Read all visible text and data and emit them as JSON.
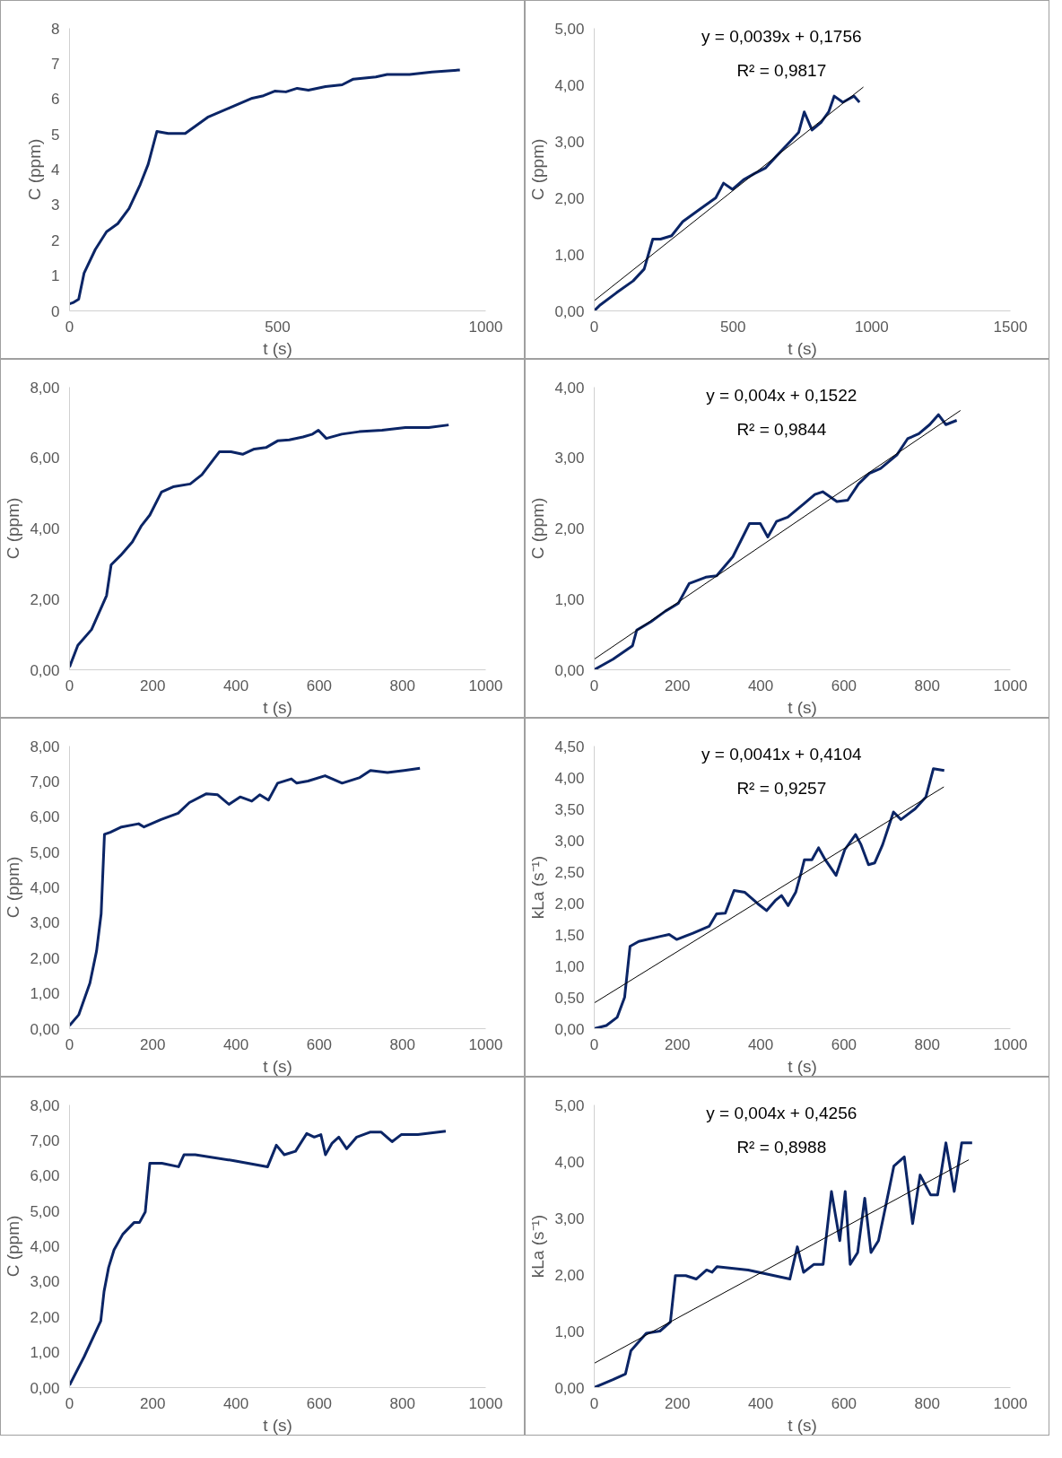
{
  "chart_data": [
    {
      "type": "line",
      "xlabel": "t (s)",
      "ylabel": "C (ppm)",
      "xlim": [
        0,
        1000
      ],
      "ylim": [
        0,
        8
      ],
      "xticks": [
        0,
        500,
        1000
      ],
      "yticks": [
        0,
        1,
        2,
        3,
        4,
        5,
        6,
        7,
        8
      ],
      "series": [
        {
          "color": "#0b2566",
          "x": [
            0,
            8,
            22,
            35,
            62,
            89,
            116,
            143,
            170,
            189,
            210,
            237,
            278,
            332,
            385,
            439,
            466,
            493,
            520,
            547,
            574,
            615,
            655,
            682,
            736,
            763,
            817,
            871,
            938
          ],
          "values": [
            0.2,
            0.23,
            0.33,
            1.07,
            1.74,
            2.24,
            2.47,
            2.9,
            3.58,
            4.15,
            5.08,
            5.02,
            5.02,
            5.48,
            5.75,
            6.02,
            6.09,
            6.22,
            6.2,
            6.3,
            6.25,
            6.35,
            6.4,
            6.56,
            6.62,
            6.69,
            6.69,
            6.76,
            6.82
          ]
        }
      ]
    },
    {
      "type": "line",
      "xlabel": "t (s)",
      "ylabel": "C (ppm)",
      "xlim": [
        0,
        1500
      ],
      "ylim": [
        0,
        5
      ],
      "xticks": [
        0,
        500,
        1000,
        1500
      ],
      "yticks": [
        {
          "value": 0,
          "label": "0,00"
        },
        {
          "value": 1,
          "label": "1,00"
        },
        {
          "value": 2,
          "label": "2,00"
        },
        {
          "value": 3,
          "label": "3,00"
        },
        {
          "value": 4,
          "label": "4,00"
        },
        {
          "value": 5,
          "label": "5,00"
        }
      ],
      "annotations": [
        "y = 0,0039x + 0,1756",
        "R² = 0,9817"
      ],
      "series": [
        {
          "color": "#0b2566",
          "x": [
            0,
            20,
            80,
            140,
            180,
            211,
            239,
            279,
            319,
            378,
            438,
            466,
            498,
            538,
            578,
            618,
            657,
            697,
            737,
            757,
            785,
            817,
            845,
            865,
            896,
            936,
            956
          ],
          "values": [
            0,
            0.1,
            0.32,
            0.53,
            0.74,
            1.27,
            1.27,
            1.33,
            1.58,
            1.79,
            2.0,
            2.26,
            2.15,
            2.32,
            2.43,
            2.53,
            2.74,
            2.95,
            3.16,
            3.52,
            3.2,
            3.33,
            3.52,
            3.8,
            3.69,
            3.8,
            3.69
          ]
        },
        {
          "type": "line",
          "color": "#000000",
          "x": [
            0,
            970
          ],
          "values": [
            0.18,
            3.96
          ]
        }
      ]
    },
    {
      "type": "line",
      "xlabel": "t (s)",
      "ylabel": "C (ppm)",
      "xlim": [
        0,
        1000
      ],
      "ylim": [
        0,
        8
      ],
      "xticks": [
        0,
        200,
        400,
        600,
        800,
        1000
      ],
      "yticks": [
        {
          "value": 0,
          "label": "0,00"
        },
        {
          "value": 2,
          "label": "2,00"
        },
        {
          "value": 4,
          "label": "4,00"
        },
        {
          "value": 6,
          "label": "6,00"
        },
        {
          "value": 8,
          "label": "8,00"
        }
      ],
      "series": [
        {
          "color": "#0b2566",
          "x": [
            0,
            20,
            53,
            89,
            100,
            123,
            151,
            173,
            193,
            221,
            249,
            290,
            318,
            360,
            388,
            416,
            444,
            472,
            500,
            528,
            561,
            584,
            598,
            617,
            654,
            696,
            751,
            807,
            863,
            911
          ],
          "values": [
            0.08,
            0.69,
            1.14,
            2.1,
            2.97,
            3.24,
            3.62,
            4.08,
            4.38,
            5.03,
            5.18,
            5.26,
            5.52,
            6.17,
            6.17,
            6.1,
            6.25,
            6.29,
            6.48,
            6.51,
            6.59,
            6.67,
            6.78,
            6.55,
            6.67,
            6.74,
            6.78,
            6.86,
            6.86,
            6.93
          ]
        }
      ]
    },
    {
      "type": "line",
      "xlabel": "t (s)",
      "ylabel": "C (ppm)",
      "xlim": [
        0,
        1000
      ],
      "ylim": [
        0,
        4
      ],
      "xticks": [
        0,
        200,
        400,
        600,
        800,
        1000
      ],
      "yticks": [
        {
          "value": 0,
          "label": "0,00"
        },
        {
          "value": 1,
          "label": "1,00"
        },
        {
          "value": 2,
          "label": "2,00"
        },
        {
          "value": 3,
          "label": "3,00"
        },
        {
          "value": 4,
          "label": "4,00"
        }
      ],
      "annotations": [
        "y = 0,004x + 0,1522",
        "R² = 0,9844"
      ],
      "series": [
        {
          "color": "#0b2566",
          "x": [
            0,
            18,
            45,
            92,
            102,
            136,
            171,
            202,
            228,
            268,
            294,
            333,
            373,
            399,
            417,
            438,
            465,
            504,
            530,
            549,
            583,
            609,
            635,
            661,
            688,
            727,
            753,
            780,
            806,
            827,
            845,
            871
          ],
          "values": [
            0,
            0.06,
            0.15,
            0.34,
            0.56,
            0.68,
            0.83,
            0.94,
            1.22,
            1.31,
            1.33,
            1.6,
            2.07,
            2.07,
            1.88,
            2.1,
            2.16,
            2.35,
            2.48,
            2.52,
            2.38,
            2.4,
            2.63,
            2.78,
            2.85,
            3.04,
            3.27,
            3.34,
            3.47,
            3.61,
            3.47,
            3.53
          ]
        },
        {
          "type": "line",
          "color": "#000000",
          "x": [
            0,
            880
          ],
          "values": [
            0.15,
            3.67
          ]
        }
      ]
    },
    {
      "type": "line",
      "xlabel": "t (s)",
      "ylabel": "C (ppm)",
      "xlim": [
        0,
        1000
      ],
      "ylim": [
        0,
        8
      ],
      "xticks": [
        0,
        200,
        400,
        600,
        800,
        1000
      ],
      "yticks": [
        {
          "value": 0,
          "label": "0,00"
        },
        {
          "value": 1,
          "label": "1,00"
        },
        {
          "value": 2,
          "label": "2,00"
        },
        {
          "value": 3,
          "label": "3,00"
        },
        {
          "value": 4,
          "label": "4,00"
        },
        {
          "value": 5,
          "label": "5,00"
        },
        {
          "value": 6,
          "label": "6,00"
        },
        {
          "value": 7,
          "label": "7,00"
        },
        {
          "value": 8,
          "label": "8,00"
        }
      ],
      "series": [
        {
          "color": "#0b2566",
          "x": [
            0,
            22,
            49,
            65,
            76,
            84,
            98,
            125,
            166,
            179,
            220,
            261,
            288,
            329,
            356,
            383,
            410,
            438,
            457,
            478,
            500,
            533,
            546,
            573,
            614,
            655,
            696,
            723,
            764,
            804,
            842
          ],
          "values": [
            0.09,
            0.39,
            1.29,
            2.2,
            3.25,
            5.5,
            5.56,
            5.71,
            5.8,
            5.71,
            5.92,
            6.1,
            6.4,
            6.65,
            6.62,
            6.35,
            6.56,
            6.44,
            6.62,
            6.47,
            6.95,
            7.07,
            6.95,
            7.01,
            7.16,
            6.95,
            7.1,
            7.31,
            7.25,
            7.31,
            7.37
          ]
        }
      ]
    },
    {
      "type": "line",
      "xlabel": "t (s)",
      "ylabel": "kLa (s⁻¹)",
      "xlim": [
        0,
        1000
      ],
      "ylim": [
        0,
        4.5
      ],
      "xticks": [
        0,
        200,
        400,
        600,
        800,
        1000
      ],
      "yticks": [
        {
          "value": 0,
          "label": "0,00"
        },
        {
          "value": 0.5,
          "label": "0,50"
        },
        {
          "value": 1,
          "label": "1,00"
        },
        {
          "value": 1.5,
          "label": "1,50"
        },
        {
          "value": 2,
          "label": "2,00"
        },
        {
          "value": 2.5,
          "label": "2,50"
        },
        {
          "value": 3,
          "label": "3,00"
        },
        {
          "value": 3.5,
          "label": "3,50"
        },
        {
          "value": 4,
          "label": "4,00"
        },
        {
          "value": 4.5,
          "label": "4,50"
        }
      ],
      "annotations": [
        "y = 0,0041x + 0,4104",
        "R² = 0,9257"
      ],
      "series": [
        {
          "color": "#0b2566",
          "x": [
            0,
            29,
            55,
            73,
            86,
            107,
            159,
            180,
            198,
            237,
            276,
            294,
            315,
            336,
            362,
            393,
            414,
            435,
            450,
            466,
            484,
            497,
            505,
            523,
            539,
            555,
            581,
            602,
            628,
            641,
            659,
            674,
            693,
            719,
            737,
            771,
            797,
            815,
            841
          ],
          "values": [
            0,
            0.05,
            0.18,
            0.5,
            1.31,
            1.39,
            1.47,
            1.5,
            1.42,
            1.52,
            1.63,
            1.83,
            1.84,
            2.2,
            2.17,
            1.99,
            1.88,
            2.04,
            2.12,
            1.96,
            2.17,
            2.48,
            2.69,
            2.69,
            2.88,
            2.69,
            2.44,
            2.85,
            3.09,
            2.93,
            2.61,
            2.64,
            2.93,
            3.45,
            3.33,
            3.5,
            3.69,
            4.14,
            4.11
          ]
        },
        {
          "type": "line",
          "color": "#000000",
          "x": [
            0,
            840
          ],
          "values": [
            0.41,
            3.85
          ]
        }
      ]
    },
    {
      "type": "line",
      "xlabel": "t (s)",
      "ylabel": "C (ppm)",
      "xlim": [
        0,
        1000
      ],
      "ylim": [
        0,
        8
      ],
      "xticks": [
        0,
        200,
        400,
        600,
        800,
        1000
      ],
      "yticks": [
        {
          "value": 0,
          "label": "0,00"
        },
        {
          "value": 1,
          "label": "1,00"
        },
        {
          "value": 2,
          "label": "2,00"
        },
        {
          "value": 3,
          "label": "3,00"
        },
        {
          "value": 4,
          "label": "4,00"
        },
        {
          "value": 5,
          "label": "5,00"
        },
        {
          "value": 6,
          "label": "6,00"
        },
        {
          "value": 7,
          "label": "7,00"
        },
        {
          "value": 8,
          "label": "8,00"
        }
      ],
      "series": [
        {
          "color": "#0b2566",
          "x": [
            0,
            35,
            75,
            83,
            94,
            107,
            128,
            155,
            168,
            182,
            193,
            222,
            262,
            275,
            302,
            396,
            476,
            497,
            516,
            543,
            570,
            588,
            604,
            615,
            631,
            647,
            666,
            690,
            722,
            749,
            775,
            797,
            837,
            904
          ],
          "values": [
            0.07,
            0.87,
            1.88,
            2.72,
            3.4,
            3.9,
            4.34,
            4.67,
            4.67,
            4.97,
            6.35,
            6.35,
            6.25,
            6.59,
            6.59,
            6.42,
            6.25,
            6.86,
            6.59,
            6.69,
            7.19,
            7.09,
            7.16,
            6.59,
            6.92,
            7.09,
            6.76,
            7.09,
            7.23,
            7.23,
            6.96,
            7.16,
            7.16,
            7.26
          ]
        }
      ]
    },
    {
      "type": "line",
      "xlabel": "t (s)",
      "ylabel": "kLa (s⁻¹)",
      "xlim": [
        0,
        1000
      ],
      "ylim": [
        0,
        5
      ],
      "xticks": [
        0,
        200,
        400,
        600,
        800,
        1000
      ],
      "yticks": [
        {
          "value": 0,
          "label": "0,00"
        },
        {
          "value": 1,
          "label": "1,00"
        },
        {
          "value": 2,
          "label": "2,00"
        },
        {
          "value": 3,
          "label": "3,00"
        },
        {
          "value": 4,
          "label": "4,00"
        },
        {
          "value": 5,
          "label": "5,00"
        }
      ],
      "annotations": [
        "y = 0,004x + 0,4256",
        "R² = 0,8988"
      ],
      "series": [
        {
          "color": "#0b2566",
          "x": [
            0,
            45,
            75,
            88,
            125,
            158,
            183,
            195,
            220,
            245,
            270,
            283,
            295,
            370,
            470,
            488,
            503,
            528,
            550,
            570,
            590,
            603,
            615,
            633,
            650,
            665,
            683,
            700,
            720,
            745,
            765,
            783,
            808,
            825,
            845,
            865,
            883,
            908
          ],
          "values": [
            0,
            0.14,
            0.24,
            0.65,
            0.96,
            1.0,
            1.16,
            1.98,
            1.98,
            1.92,
            2.08,
            2.04,
            2.14,
            2.08,
            1.92,
            2.49,
            2.04,
            2.18,
            2.18,
            3.47,
            2.6,
            3.47,
            2.18,
            2.39,
            3.35,
            2.39,
            2.6,
            3.2,
            3.92,
            4.08,
            2.9,
            3.76,
            3.41,
            3.41,
            4.33,
            3.47,
            4.33,
            4.33
          ]
        },
        {
          "type": "line",
          "color": "#000000",
          "x": [
            0,
            900
          ],
          "values": [
            0.43,
            4.03
          ]
        }
      ]
    }
  ]
}
